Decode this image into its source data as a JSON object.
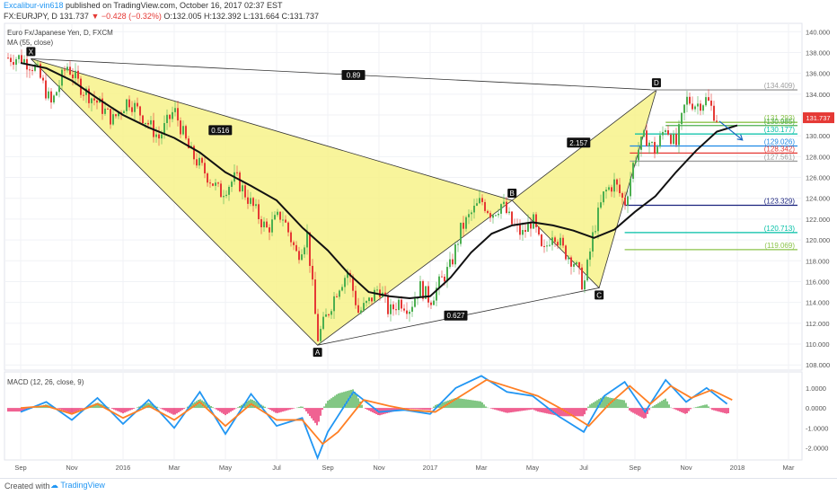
{
  "header": {
    "user": "Excalibur-vin618",
    "published": " published on TradingView.com, October 16, 2017 02:37 EST",
    "symbol": "FX:EURJPY, D",
    "last": "131.737",
    "change": "▼ −0.428 (−0.32%)",
    "ohlc": "O:132.005 H:132.392 L:131.664 C:131.737"
  },
  "legend": {
    "instrument": "Euro Fx/Japanese Yen, D, FXCM",
    "ma": "MA (55, close)",
    "macd": "MACD (12, 26, close, 9)"
  },
  "footer": {
    "created": "Created with",
    "brand": "TradingView"
  },
  "colors": {
    "pattern_fill": "#f7f28a",
    "pattern_stroke": "#333333",
    "up": "#4caf50",
    "down": "#e53935",
    "ma": "#111111",
    "macd": "#2196f3",
    "signal": "#ff7f24",
    "hist_pos": "#4caf50",
    "hist_neg": "#e91e63",
    "last_price": "#e53935",
    "arrow": "#1565c0"
  },
  "chart_data": {
    "type": "candlestick",
    "x_ticks": [
      "Sep",
      "Nov",
      "2016",
      "Mar",
      "May",
      "Jul",
      "Sep",
      "Nov",
      "2017",
      "Mar",
      "May",
      "Jul",
      "Sep",
      "Nov",
      "2018",
      "Mar"
    ],
    "y_ticks": [
      "140.000",
      "138.000",
      "136.000",
      "134.000",
      "132.000",
      "130.000",
      "128.000",
      "126.000",
      "124.000",
      "122.000",
      "120.000",
      "118.000",
      "116.000",
      "114.000",
      "112.000",
      "110.000",
      "108.000"
    ],
    "ylim": [
      107.5,
      140.8
    ],
    "last_price": {
      "label": "131.737",
      "value": 131.737
    },
    "pattern_points": [
      {
        "label": "X",
        "x": 0.2,
        "price": 137.4
      },
      {
        "label": "A",
        "x": 5.8,
        "price": 109.9
      },
      {
        "label": "B",
        "x": 9.6,
        "price": 123.8
      },
      {
        "label": "C",
        "x": 11.3,
        "price": 115.4
      },
      {
        "label": "D",
        "x": 12.42,
        "price": 134.4
      }
    ],
    "ratio_labels": [
      {
        "text": "0.516",
        "x": 3.9,
        "price": 130.5
      },
      {
        "text": "0.627",
        "x": 8.5,
        "price": 112.7
      },
      {
        "text": "2.157",
        "x": 10.9,
        "price": 129.3
      },
      {
        "text": "0.89",
        "x": 6.5,
        "price": 135.8
      }
    ],
    "levels": [
      {
        "label": "(134.409)",
        "value": 134.409,
        "color": "#9e9e9e",
        "x_start": 12.3
      },
      {
        "label": "(131.293)",
        "value": 131.293,
        "color": "#8bc34a",
        "x_start": 12.6
      },
      {
        "label": "(130.985)",
        "value": 130.985,
        "color": "#4caf50",
        "x_start": 12.6
      },
      {
        "label": "(130.177)",
        "value": 130.177,
        "color": "#00bfa5",
        "x_start": 12.0
      },
      {
        "label": "(129.026)",
        "value": 129.026,
        "color": "#1e88e5",
        "x_start": 11.9
      },
      {
        "label": "(128.342)",
        "value": 128.342,
        "color": "#e53935",
        "x_start": 11.9
      },
      {
        "label": "(127.561)",
        "value": 127.561,
        "color": "#9e9e9e",
        "x_start": 11.9
      },
      {
        "label": "(123.329)",
        "value": 123.329,
        "color": "#1a237e",
        "x_start": 11.8
      },
      {
        "label": "(120.713)",
        "value": 120.713,
        "color": "#00bfa5",
        "x_start": 11.8
      },
      {
        "label": "(119.069)",
        "value": 119.069,
        "color": "#8bc34a",
        "x_start": 11.8
      }
    ],
    "price_path": [
      [
        0.0,
        137.5
      ],
      [
        0.3,
        136.5
      ],
      [
        0.6,
        133.0
      ],
      [
        0.9,
        136.8
      ],
      [
        1.2,
        134.5
      ],
      [
        1.5,
        133.2
      ],
      [
        1.8,
        131.5
      ],
      [
        2.1,
        133.5
      ],
      [
        2.4,
        131.8
      ],
      [
        2.7,
        129.8
      ],
      [
        3.0,
        132.5
      ],
      [
        3.3,
        128.5
      ],
      [
        3.6,
        126.5
      ],
      [
        3.9,
        124.5
      ],
      [
        4.2,
        126.0
      ],
      [
        4.5,
        123.5
      ],
      [
        4.8,
        121.0
      ],
      [
        5.1,
        122.5
      ],
      [
        5.4,
        118.5
      ],
      [
        5.6,
        120.5
      ],
      [
        5.8,
        110.5
      ],
      [
        6.0,
        113.0
      ],
      [
        6.2,
        115.5
      ],
      [
        6.4,
        117.0
      ],
      [
        6.6,
        113.0
      ],
      [
        6.8,
        114.0
      ],
      [
        7.0,
        115.5
      ],
      [
        7.2,
        113.0
      ],
      [
        7.4,
        114.2
      ],
      [
        7.6,
        113.5
      ],
      [
        7.8,
        115.5
      ],
      [
        8.0,
        114.2
      ],
      [
        8.2,
        116.0
      ],
      [
        8.4,
        117.5
      ],
      [
        8.6,
        121.0
      ],
      [
        8.8,
        122.5
      ],
      [
        9.0,
        123.8
      ],
      [
        9.2,
        122.5
      ],
      [
        9.4,
        123.5
      ],
      [
        9.6,
        121.5
      ],
      [
        9.8,
        120.5
      ],
      [
        10.0,
        122.0
      ],
      [
        10.2,
        118.5
      ],
      [
        10.4,
        121.0
      ],
      [
        10.6,
        119.0
      ],
      [
        10.8,
        118.0
      ],
      [
        11.0,
        115.5
      ],
      [
        11.2,
        121.0
      ],
      [
        11.4,
        124.5
      ],
      [
        11.6,
        125.5
      ],
      [
        11.8,
        123.5
      ],
      [
        12.0,
        128.0
      ],
      [
        12.2,
        130.0
      ],
      [
        12.4,
        128.5
      ],
      [
        12.6,
        131.0
      ],
      [
        12.8,
        129.0
      ],
      [
        13.0,
        133.5
      ],
      [
        13.2,
        133.0
      ],
      [
        13.4,
        133.5
      ],
      [
        13.6,
        131.7
      ]
    ],
    "ma_path": [
      [
        0.0,
        137.0
      ],
      [
        0.5,
        136.5
      ],
      [
        1.0,
        135.3
      ],
      [
        1.5,
        133.6
      ],
      [
        2.0,
        132.0
      ],
      [
        2.5,
        130.8
      ],
      [
        3.0,
        129.8
      ],
      [
        3.5,
        128.4
      ],
      [
        4.0,
        126.5
      ],
      [
        4.5,
        125.2
      ],
      [
        5.0,
        123.8
      ],
      [
        5.5,
        121.2
      ],
      [
        6.0,
        119.0
      ],
      [
        6.4,
        116.8
      ],
      [
        6.8,
        115.0
      ],
      [
        7.2,
        114.6
      ],
      [
        7.6,
        114.4
      ],
      [
        8.0,
        114.6
      ],
      [
        8.4,
        116.4
      ],
      [
        8.8,
        118.8
      ],
      [
        9.2,
        120.6
      ],
      [
        9.6,
        121.4
      ],
      [
        10.0,
        121.7
      ],
      [
        10.4,
        121.4
      ],
      [
        10.8,
        120.9
      ],
      [
        11.2,
        120.2
      ],
      [
        11.6,
        121.0
      ],
      [
        12.0,
        122.7
      ],
      [
        12.4,
        124.2
      ],
      [
        12.8,
        126.5
      ],
      [
        13.2,
        128.6
      ],
      [
        13.6,
        130.4
      ],
      [
        14.0,
        131.0
      ]
    ],
    "macd": {
      "title": "MACD (12, 26, close, 9)",
      "y_ticks": [
        "1.0000",
        "0.0000",
        "-1.0000",
        "-2.0000"
      ],
      "ylim": [
        -2.6,
        1.8
      ],
      "macd_path": [
        [
          0.0,
          -0.2
        ],
        [
          0.5,
          0.3
        ],
        [
          1.0,
          -0.6
        ],
        [
          1.5,
          0.5
        ],
        [
          2.0,
          -0.8
        ],
        [
          2.5,
          0.4
        ],
        [
          3.0,
          -1.0
        ],
        [
          3.5,
          0.8
        ],
        [
          4.0,
          -1.3
        ],
        [
          4.5,
          0.7
        ],
        [
          5.0,
          -0.9
        ],
        [
          5.5,
          -0.5
        ],
        [
          5.8,
          -2.5
        ],
        [
          6.0,
          -1.2
        ],
        [
          6.5,
          0.8
        ],
        [
          7.0,
          -0.2
        ],
        [
          7.5,
          -0.1
        ],
        [
          8.0,
          -0.3
        ],
        [
          8.5,
          1.0
        ],
        [
          9.0,
          1.6
        ],
        [
          9.5,
          0.8
        ],
        [
          10.0,
          0.6
        ],
        [
          10.5,
          -0.4
        ],
        [
          11.0,
          -1.2
        ],
        [
          11.4,
          0.6
        ],
        [
          11.8,
          1.3
        ],
        [
          12.2,
          -0.2
        ],
        [
          12.6,
          1.4
        ],
        [
          13.0,
          0.3
        ],
        [
          13.4,
          1.0
        ],
        [
          13.8,
          0.2
        ]
      ],
      "signal_path": [
        [
          0.0,
          0.0
        ],
        [
          0.5,
          0.1
        ],
        [
          1.0,
          -0.3
        ],
        [
          1.5,
          0.2
        ],
        [
          2.0,
          -0.5
        ],
        [
          2.5,
          0.1
        ],
        [
          3.0,
          -0.6
        ],
        [
          3.5,
          0.3
        ],
        [
          4.0,
          -0.9
        ],
        [
          4.5,
          0.2
        ],
        [
          5.0,
          -0.6
        ],
        [
          5.5,
          -0.6
        ],
        [
          5.9,
          -1.8
        ],
        [
          6.2,
          -1.2
        ],
        [
          6.7,
          0.4
        ],
        [
          7.2,
          0.1
        ],
        [
          7.6,
          -0.1
        ],
        [
          8.1,
          -0.2
        ],
        [
          8.6,
          0.6
        ],
        [
          9.1,
          1.4
        ],
        [
          9.6,
          1.0
        ],
        [
          10.1,
          0.6
        ],
        [
          10.6,
          -0.1
        ],
        [
          11.1,
          -0.9
        ],
        [
          11.5,
          0.2
        ],
        [
          11.9,
          1.1
        ],
        [
          12.3,
          0.2
        ],
        [
          12.7,
          1.1
        ],
        [
          13.1,
          0.5
        ],
        [
          13.5,
          0.9
        ],
        [
          13.9,
          0.4
        ]
      ]
    }
  }
}
